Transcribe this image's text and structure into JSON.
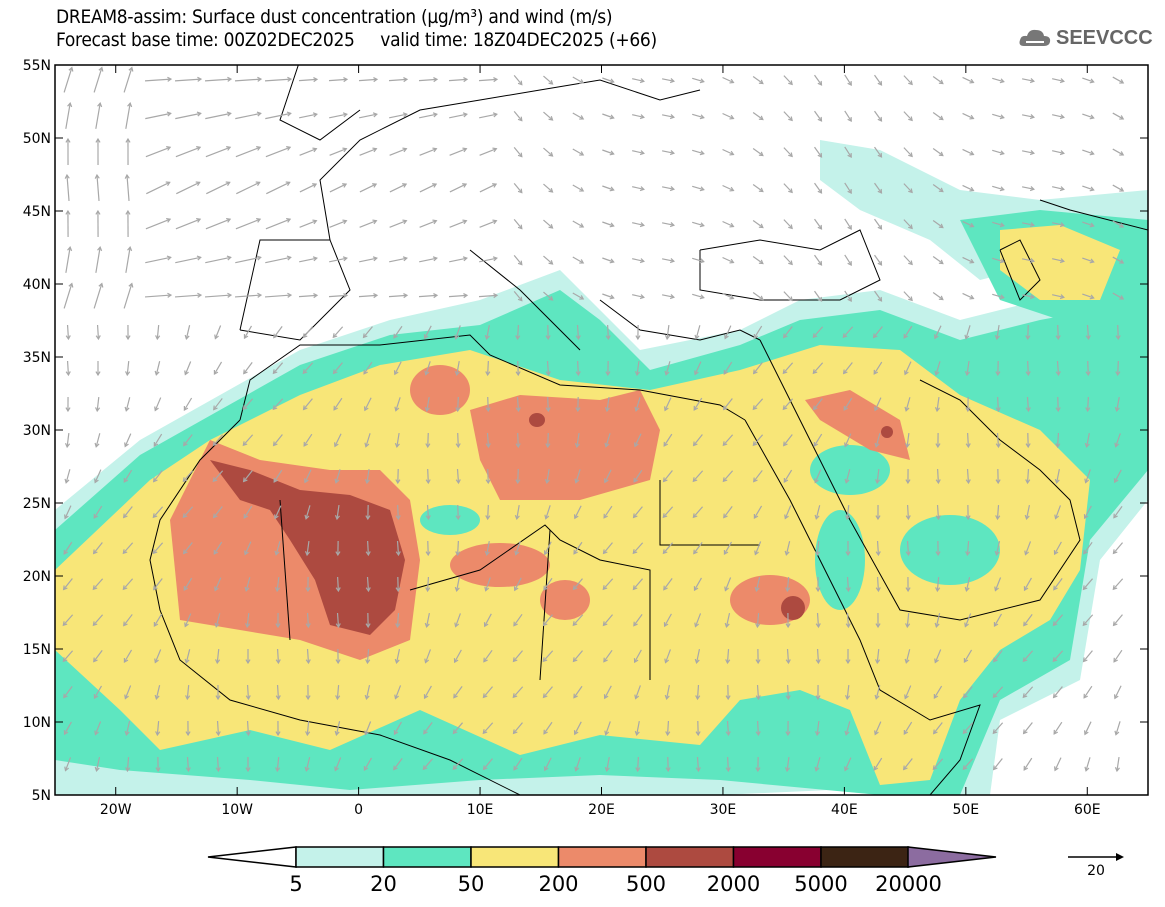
{
  "header": {
    "title_line1": "DREAM8-assim: Surface dust concentration (µg/m³) and wind (m/s)",
    "title_line2": "Forecast base time: 00Z02DEC2025     valid time: 18Z04DEC2025 (+66)",
    "logo_text": "SEEVCCC"
  },
  "map": {
    "lat_ticks": [
      "55N",
      "50N",
      "45N",
      "40N",
      "35N",
      "30N",
      "25N",
      "20N",
      "15N",
      "10N",
      "5N"
    ],
    "lon_ticks": [
      "20W",
      "10W",
      "0",
      "10E",
      "20E",
      "30E",
      "40E",
      "50E",
      "60E"
    ],
    "lon_range": [
      -25,
      65
    ],
    "lat_range": [
      5,
      55
    ],
    "wind_arrow_color": "#a8a8a8"
  },
  "colorbar": {
    "labels": [
      "5",
      "20",
      "50",
      "200",
      "500",
      "2000",
      "5000",
      "20000"
    ],
    "colors": [
      "#ffffff",
      "#c4f2ea",
      "#5ee6c0",
      "#f8e678",
      "#ec8a6a",
      "#ad4a40",
      "#880030",
      "#3c2414",
      "#8c6ca0"
    ]
  },
  "wind_legend": {
    "label": "20"
  }
}
